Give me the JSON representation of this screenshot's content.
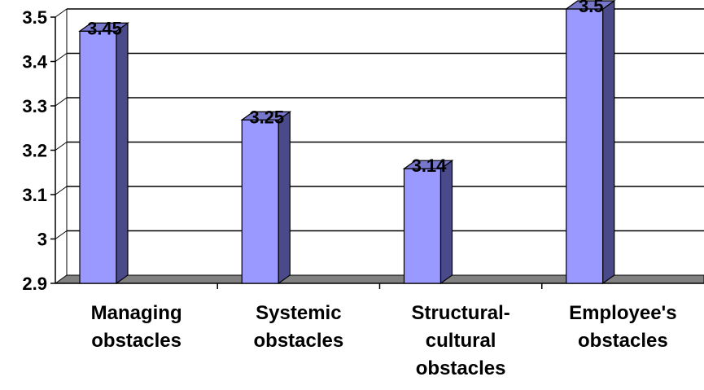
{
  "chart_data": {
    "type": "bar",
    "title": "",
    "xlabel": "",
    "ylabel": "",
    "categories": [
      [
        "Managing",
        "obstacles"
      ],
      [
        "Systemic",
        "obstacles"
      ],
      [
        "Structural-",
        "cultural",
        "obstacles"
      ],
      [
        "Employee's",
        "obstacles"
      ]
    ],
    "values": [
      3.45,
      3.25,
      3.14,
      3.5
    ],
    "value_labels": [
      "3.45",
      "3.25",
      "3.14",
      "3.5"
    ],
    "ylim": [
      2.9,
      3.5
    ],
    "y_ticks": [
      "2.9",
      "3",
      "3.1",
      "3.2",
      "3.3",
      "3.4",
      "3.5"
    ],
    "grid": true,
    "three_d": true,
    "colors": {
      "bar_front": "#9999ff",
      "bar_side": "#4a4a8a",
      "bar_top": "#7777cc",
      "floor": "#808080",
      "grid": "#000000"
    }
  }
}
